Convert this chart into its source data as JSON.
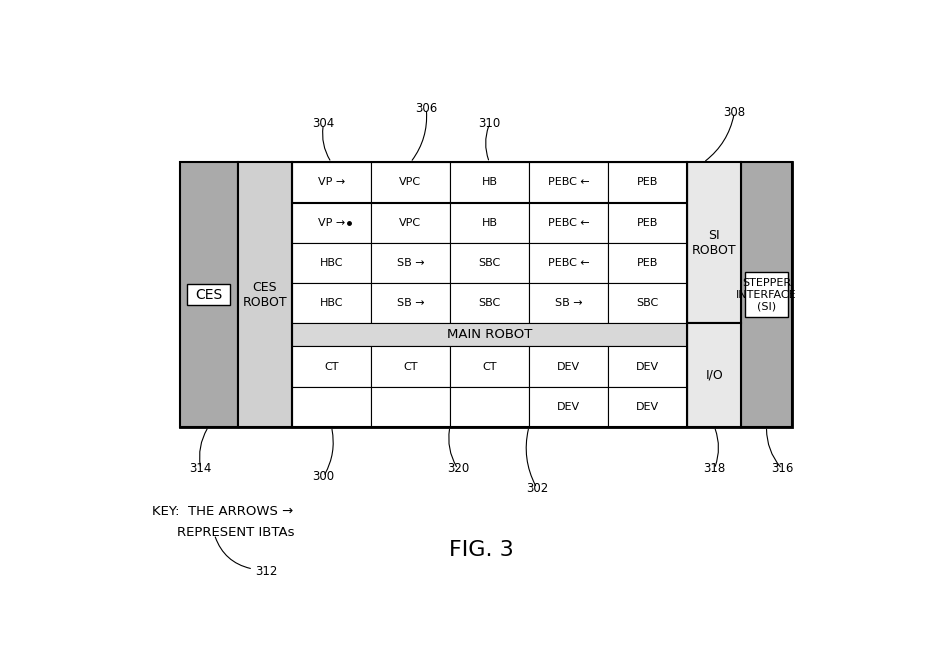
{
  "bg_color": "#ffffff",
  "fig_title": "FIG. 3",
  "row0": [
    "VP →",
    "VPC",
    "HB",
    "PEBC ←",
    "PEB"
  ],
  "row1": [
    "VP →",
    "VPC",
    "HB",
    "PEBC ←",
    "PEB"
  ],
  "row2": [
    "HBC",
    "SB →",
    "SBC",
    "PEBC ←",
    "PEB"
  ],
  "row3": [
    "HBC",
    "SB →",
    "SBC",
    "SB →",
    "SBC"
  ],
  "row4_label": "MAIN ROBOT",
  "row5": [
    "CT",
    "CT",
    "CT",
    "DEV",
    "DEV"
  ],
  "row6": [
    "",
    "",
    "",
    "DEV",
    "DEV"
  ],
  "ces_color": "#aaaaaa",
  "ces_robot_color": "#d0d0d0",
  "si_robot_color": "#e8e8e8",
  "io_color": "#e8e8e8",
  "stepper_color": "#aaaaaa",
  "main_robot_row_color": "#d8d8d8",
  "cell_color": "#ffffff",
  "white_label_color": "#ffffff",
  "black_label_color": "#000000",
  "text_fontsize": 8.0,
  "annotation_fontsize": 8.5,
  "fig_fontsize": 16,
  "key_fontsize": 9.5
}
